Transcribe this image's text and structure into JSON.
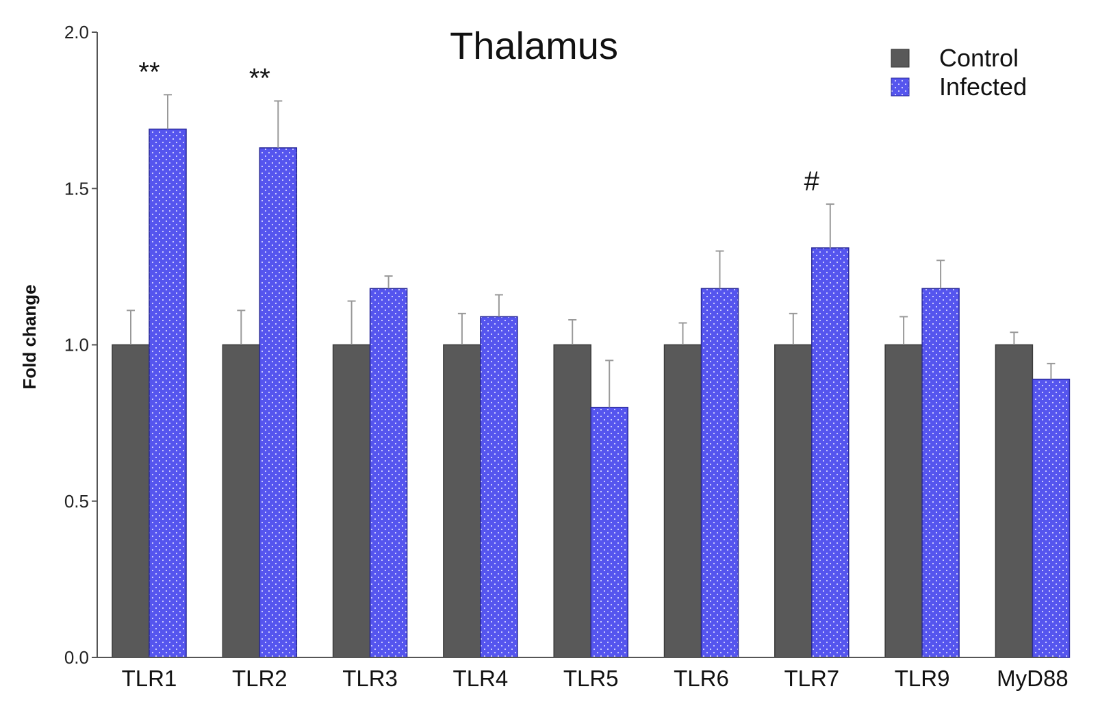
{
  "chart_data": {
    "type": "bar",
    "title": "Thalamus",
    "ylabel": "Fold change",
    "xlabel": "",
    "ylim": [
      0,
      2.0
    ],
    "yticks": [
      "0.0",
      "0.5",
      "1.0",
      "1.5",
      "2.0"
    ],
    "categories": [
      "TLR1",
      "TLR2",
      "TLR3",
      "TLR4",
      "TLR5",
      "TLR6",
      "TLR7",
      "TLR9",
      "MyD88"
    ],
    "series": [
      {
        "name": "Control",
        "color": "#595959",
        "values": [
          1.0,
          1.0,
          1.0,
          1.0,
          1.0,
          1.0,
          1.0,
          1.0,
          1.0
        ],
        "errors": [
          0.11,
          0.11,
          0.14,
          0.1,
          0.08,
          0.07,
          0.1,
          0.09,
          0.04
        ]
      },
      {
        "name": "Infected",
        "color": "#5555ee",
        "values": [
          1.69,
          1.63,
          1.18,
          1.09,
          0.8,
          1.18,
          1.31,
          1.18,
          0.89
        ],
        "errors": [
          0.11,
          0.15,
          0.04,
          0.07,
          0.15,
          0.12,
          0.14,
          0.09,
          0.05
        ]
      }
    ],
    "annotations": [
      "**",
      "**",
      "",
      "",
      "",
      "",
      "#",
      "",
      ""
    ],
    "legend": "top-right",
    "grid": false
  }
}
